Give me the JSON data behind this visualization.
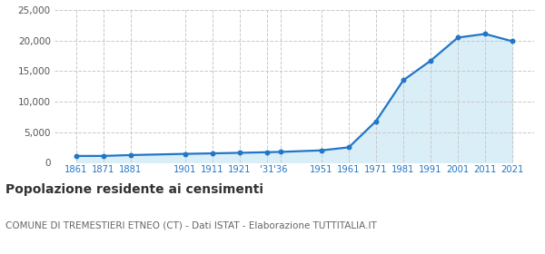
{
  "years": [
    1861,
    1871,
    1881,
    1901,
    1911,
    1921,
    1931,
    1936,
    1951,
    1961,
    1971,
    1981,
    1991,
    2001,
    2011,
    2021
  ],
  "population": [
    1080,
    1090,
    1230,
    1430,
    1510,
    1600,
    1700,
    1750,
    2000,
    2500,
    6800,
    13500,
    16700,
    20500,
    21100,
    19900
  ],
  "line_color": "#2176c7",
  "fill_color": "#daeef8",
  "marker_color": "#2176c7",
  "title": "Popolazione residente ai censimenti",
  "subtitle": "COMUNE DI TREMESTIERI ETNEO (CT) - Dati ISTAT - Elaborazione TUTTITALIA.IT",
  "ylim": [
    0,
    25000
  ],
  "yticks": [
    0,
    5000,
    10000,
    15000,
    20000,
    25000
  ],
  "grid_color": "#c8c8c8",
  "background_color": "#ffffff",
  "title_fontsize": 10,
  "subtitle_fontsize": 7.5,
  "x_tick_positions": [
    1861,
    1871,
    1881,
    1901,
    1911,
    1921,
    1931,
    1936,
    1951,
    1961,
    1971,
    1981,
    1991,
    2001,
    2011,
    2021
  ],
  "x_tick_labels": [
    "1861",
    "1871",
    "1881",
    "1901",
    "1911",
    "1921",
    "'31",
    "'36",
    "1951",
    "1961",
    "1971",
    "1981",
    "1991",
    "2001",
    "2011",
    "2021"
  ]
}
